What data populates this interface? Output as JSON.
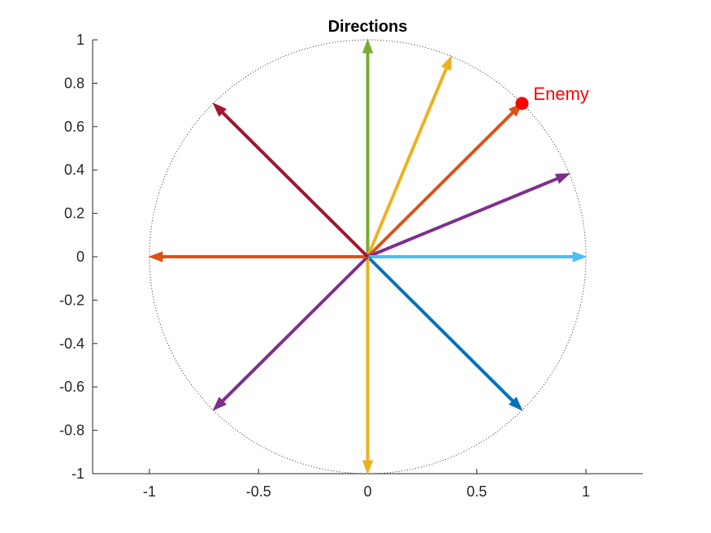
{
  "chart_data": {
    "type": "quiver",
    "title": "Directions",
    "xlabel": "",
    "ylabel": "",
    "xlim": [
      -1.26,
      1.26
    ],
    "ylim": [
      -1,
      1
    ],
    "xticks": [
      -1,
      -0.5,
      0,
      0.5,
      1
    ],
    "xtick_labels": [
      "-1",
      "-0.5",
      "0",
      "0.5",
      "1"
    ],
    "yticks": [
      -1,
      -0.8,
      -0.6,
      -0.4,
      -0.2,
      0,
      0.2,
      0.4,
      0.6,
      0.8,
      1
    ],
    "ytick_labels": [
      "-1",
      "-0.8",
      "-0.6",
      "-0.4",
      "-0.2",
      "0",
      "0.2",
      "0.4",
      "0.6",
      "0.8",
      "1"
    ],
    "grid": false,
    "reference_circle": {
      "radius": 1,
      "style": "dotted",
      "color": "#000000"
    },
    "arrows": [
      {
        "x": 0,
        "y": 0,
        "u": 0,
        "v": 1,
        "color": "#77AC30"
      },
      {
        "x": 0,
        "y": 0,
        "u": 0.383,
        "v": 0.924,
        "color": "#EDB120"
      },
      {
        "x": 0,
        "y": 0,
        "u": 0.707,
        "v": 0.707,
        "color": "#D95319"
      },
      {
        "x": 0,
        "y": 0,
        "u": 0.924,
        "v": 0.383,
        "color": "#7E2F8E"
      },
      {
        "x": 0,
        "y": 0,
        "u": 1,
        "v": 0,
        "color": "#4DBEEE"
      },
      {
        "x": 0,
        "y": 0,
        "u": 0.707,
        "v": -0.707,
        "color": "#0072BD"
      },
      {
        "x": 0,
        "y": 0,
        "u": 0,
        "v": -1,
        "color": "#EDB120"
      },
      {
        "x": 0,
        "y": 0,
        "u": -0.707,
        "v": -0.707,
        "color": "#7E2F8E"
      },
      {
        "x": 0,
        "y": 0,
        "u": -1,
        "v": 0,
        "color": "#D95319"
      },
      {
        "x": 0,
        "y": 0,
        "u": -0.707,
        "v": 0.707,
        "color": "#A2142F"
      }
    ],
    "points": [
      {
        "name": "Enemy",
        "x": 0.707,
        "y": 0.707,
        "color": "#FF0000",
        "label": "Enemy"
      }
    ]
  }
}
